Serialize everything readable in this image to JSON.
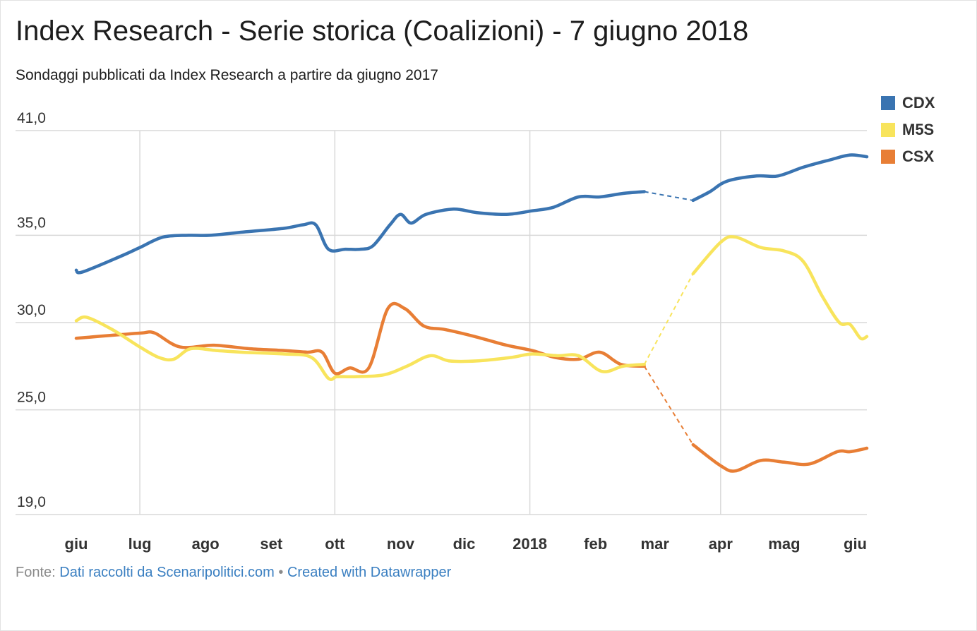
{
  "header": {
    "title": "Index Research - Serie storica (Coalizioni) - 7 giugno 2018",
    "subtitle": "Sondaggi pubblicati da Index Research a partire da giugno 2017"
  },
  "footer": {
    "source_prefix": "Fonte:",
    "source_link": "Dati raccolti da Scenaripolitici.com",
    "separator": "•",
    "credit_link": "Created with Datawrapper"
  },
  "chart_data": {
    "type": "line",
    "title": "Index Research - Serie storica (Coalizioni) - 7 giugno 2018",
    "subtitle": "Sondaggi pubblicati da Index Research a partire da giugno 2017",
    "x_axis": {
      "range": [
        "2017-06-01",
        "2018-06-09"
      ],
      "ticks": [
        {
          "label": "giu",
          "date": "2017-06-01"
        },
        {
          "label": "lug",
          "date": "2017-07-01"
        },
        {
          "label": "ago",
          "date": "2017-08-01"
        },
        {
          "label": "set",
          "date": "2017-09-01"
        },
        {
          "label": "ott",
          "date": "2017-10-01"
        },
        {
          "label": "nov",
          "date": "2017-11-01"
        },
        {
          "label": "dic",
          "date": "2017-12-01"
        },
        {
          "label": "2018",
          "date": "2018-01-01"
        },
        {
          "label": "feb",
          "date": "2018-02-01"
        },
        {
          "label": "mar",
          "date": "2018-03-01"
        },
        {
          "label": "apr",
          "date": "2018-04-01"
        },
        {
          "label": "mag",
          "date": "2018-05-01"
        },
        {
          "label": "giu",
          "date": "2018-06-01"
        }
      ],
      "vertical_gridlines": [
        "2017-07-01",
        "2017-10-01",
        "2018-01-01",
        "2018-04-01"
      ]
    },
    "y_axis": {
      "range": [
        19,
        41
      ],
      "ticks": [
        {
          "value": 41,
          "label": "41,0"
        },
        {
          "value": 35,
          "label": "35,0"
        },
        {
          "value": 30,
          "label": "30,0"
        },
        {
          "value": 25,
          "label": "25,0"
        },
        {
          "value": 19,
          "label": "19,0"
        }
      ]
    },
    "grid": true,
    "legend_position": "top-right",
    "dashed_gap": {
      "from": "2018-02-24",
      "to": "2018-03-19"
    },
    "series": [
      {
        "name": "CDX",
        "color": "#3a74b1",
        "points": [
          [
            "2017-06-01",
            33.0
          ],
          [
            "2017-06-04",
            32.9
          ],
          [
            "2017-06-22",
            33.8
          ],
          [
            "2017-07-01",
            34.3
          ],
          [
            "2017-07-12",
            34.9
          ],
          [
            "2017-07-24",
            35.0
          ],
          [
            "2017-08-03",
            35.0
          ],
          [
            "2017-08-20",
            35.2
          ],
          [
            "2017-09-07",
            35.4
          ],
          [
            "2017-09-16",
            35.6
          ],
          [
            "2017-09-22",
            35.6
          ],
          [
            "2017-09-28",
            34.2
          ],
          [
            "2017-10-06",
            34.2
          ],
          [
            "2017-10-13",
            34.2
          ],
          [
            "2017-10-19",
            34.4
          ],
          [
            "2017-10-27",
            35.6
          ],
          [
            "2017-11-01",
            36.2
          ],
          [
            "2017-11-06",
            35.7
          ],
          [
            "2017-11-13",
            36.2
          ],
          [
            "2017-11-26",
            36.5
          ],
          [
            "2017-12-07",
            36.3
          ],
          [
            "2017-12-21",
            36.2
          ],
          [
            "2018-01-02",
            36.4
          ],
          [
            "2018-01-12",
            36.6
          ],
          [
            "2018-01-24",
            37.2
          ],
          [
            "2018-02-03",
            37.2
          ],
          [
            "2018-02-14",
            37.4
          ],
          [
            "2018-02-24",
            37.5
          ],
          [
            "2018-03-19",
            37.0
          ],
          [
            "2018-03-27",
            37.5
          ],
          [
            "2018-04-04",
            38.1
          ],
          [
            "2018-04-18",
            38.4
          ],
          [
            "2018-04-28",
            38.4
          ],
          [
            "2018-05-10",
            38.9
          ],
          [
            "2018-05-22",
            39.3
          ],
          [
            "2018-06-01",
            39.6
          ],
          [
            "2018-06-09",
            39.5
          ]
        ]
      },
      {
        "name": "M5S",
        "color": "#f8e45c",
        "points": [
          [
            "2017-06-01",
            30.1
          ],
          [
            "2017-06-06",
            30.3
          ],
          [
            "2017-06-18",
            29.6
          ],
          [
            "2017-07-01",
            28.6
          ],
          [
            "2017-07-10",
            28.0
          ],
          [
            "2017-07-17",
            27.9
          ],
          [
            "2017-07-25",
            28.5
          ],
          [
            "2017-08-06",
            28.4
          ],
          [
            "2017-08-18",
            28.3
          ],
          [
            "2017-09-07",
            28.2
          ],
          [
            "2017-09-20",
            28.0
          ],
          [
            "2017-09-28",
            26.8
          ],
          [
            "2017-10-02",
            26.9
          ],
          [
            "2017-10-10",
            26.9
          ],
          [
            "2017-10-24",
            27.0
          ],
          [
            "2017-11-04",
            27.5
          ],
          [
            "2017-11-15",
            28.1
          ],
          [
            "2017-11-24",
            27.8
          ],
          [
            "2017-12-07",
            27.8
          ],
          [
            "2017-12-23",
            28.0
          ],
          [
            "2018-01-02",
            28.2
          ],
          [
            "2018-01-14",
            28.1
          ],
          [
            "2018-01-24",
            28.1
          ],
          [
            "2018-02-04",
            27.2
          ],
          [
            "2018-02-14",
            27.5
          ],
          [
            "2018-02-24",
            27.6
          ],
          [
            "2018-03-19",
            32.8
          ],
          [
            "2018-04-01",
            34.6
          ],
          [
            "2018-04-08",
            34.9
          ],
          [
            "2018-04-20",
            34.3
          ],
          [
            "2018-05-01",
            34.1
          ],
          [
            "2018-05-10",
            33.5
          ],
          [
            "2018-05-19",
            31.5
          ],
          [
            "2018-05-27",
            30.0
          ],
          [
            "2018-06-01",
            29.9
          ],
          [
            "2018-06-06",
            29.1
          ],
          [
            "2018-06-09",
            29.2
          ]
        ]
      },
      {
        "name": "CSX",
        "color": "#e87e35",
        "points": [
          [
            "2017-06-01",
            29.1
          ],
          [
            "2017-06-21",
            29.3
          ],
          [
            "2017-07-02",
            29.4
          ],
          [
            "2017-07-08",
            29.4
          ],
          [
            "2017-07-20",
            28.6
          ],
          [
            "2017-08-05",
            28.7
          ],
          [
            "2017-08-22",
            28.5
          ],
          [
            "2017-09-07",
            28.4
          ],
          [
            "2017-09-18",
            28.3
          ],
          [
            "2017-09-25",
            28.3
          ],
          [
            "2017-10-01",
            27.1
          ],
          [
            "2017-10-08",
            27.4
          ],
          [
            "2017-10-17",
            27.4
          ],
          [
            "2017-10-26",
            30.8
          ],
          [
            "2017-11-03",
            30.8
          ],
          [
            "2017-11-12",
            29.8
          ],
          [
            "2017-11-22",
            29.6
          ],
          [
            "2017-12-06",
            29.2
          ],
          [
            "2017-12-21",
            28.7
          ],
          [
            "2018-01-02",
            28.4
          ],
          [
            "2018-01-13",
            28.0
          ],
          [
            "2018-01-24",
            27.9
          ],
          [
            "2018-02-03",
            28.3
          ],
          [
            "2018-02-13",
            27.6
          ],
          [
            "2018-02-24",
            27.5
          ],
          [
            "2018-03-19",
            23.0
          ],
          [
            "2018-04-01",
            21.8
          ],
          [
            "2018-04-08",
            21.5
          ],
          [
            "2018-04-20",
            22.1
          ],
          [
            "2018-05-01",
            22.0
          ],
          [
            "2018-05-13",
            21.9
          ],
          [
            "2018-05-26",
            22.6
          ],
          [
            "2018-06-01",
            22.6
          ],
          [
            "2018-06-09",
            22.8
          ]
        ]
      }
    ]
  }
}
